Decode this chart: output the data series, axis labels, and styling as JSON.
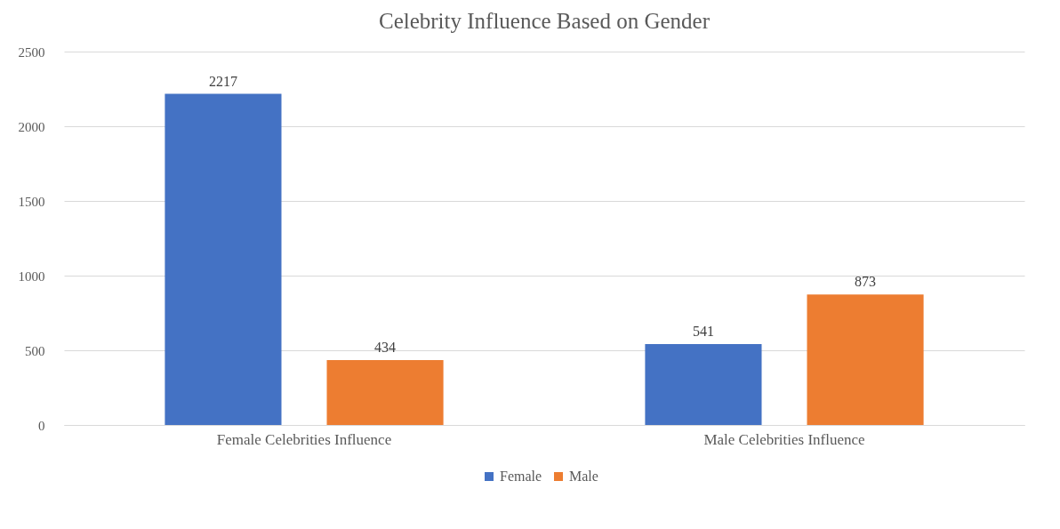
{
  "chart_data": {
    "type": "bar",
    "title": "Celebrity Influence Based on Gender",
    "categories": [
      "Female Celebrities Influence",
      "Male Celebrities Influence"
    ],
    "series": [
      {
        "name": "Female",
        "color": "#4472c4",
        "values": [
          2217,
          541
        ]
      },
      {
        "name": "Male",
        "color": "#ed7d31",
        "values": [
          434,
          873
        ]
      }
    ],
    "ylim": [
      0,
      2500
    ],
    "yticks": [
      0,
      500,
      1000,
      1500,
      2000,
      2500
    ],
    "grid": "y",
    "legend": "bottom",
    "data_labels": true
  }
}
